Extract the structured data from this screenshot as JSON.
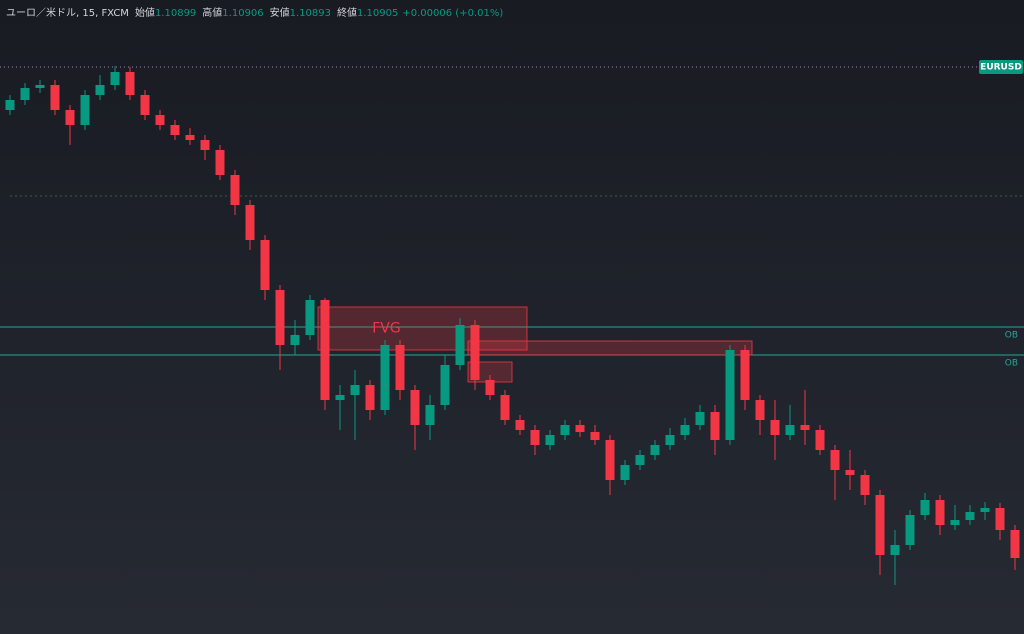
{
  "chart_data": {
    "type": "candlestick",
    "header": {
      "symbol": "ユーロ／米ドル, 15, FXCM",
      "fields": [
        {
          "label": "始値",
          "value": 1.10899
        },
        {
          "label": "高値",
          "value": 1.10906
        },
        {
          "label": "安値",
          "value": 1.10893
        },
        {
          "label": "終値",
          "value": 1.10905
        }
      ],
      "change": "+0.00006 (+0.01%)"
    },
    "ticker": "EURUSD",
    "up_color": "#089981",
    "down_color": "#f23645",
    "ylim": [
      1.1035,
      1.10984
    ],
    "ohlc": [
      [
        1.10874,
        1.10889,
        1.10869,
        1.10884
      ],
      [
        1.10884,
        1.10901,
        1.10879,
        1.10896
      ],
      [
        1.10896,
        1.10904,
        1.10891,
        1.10899
      ],
      [
        1.10899,
        1.10904,
        1.10869,
        1.10874
      ],
      [
        1.10874,
        1.10879,
        1.10839,
        1.10859
      ],
      [
        1.10859,
        1.10894,
        1.10854,
        1.10889
      ],
      [
        1.10889,
        1.10909,
        1.10884,
        1.10899
      ],
      [
        1.10899,
        1.10918,
        1.10894,
        1.10912
      ],
      [
        1.10912,
        1.10917,
        1.10884,
        1.10889
      ],
      [
        1.10889,
        1.10894,
        1.10864,
        1.10869
      ],
      [
        1.10869,
        1.10874,
        1.10854,
        1.10859
      ],
      [
        1.10859,
        1.10864,
        1.10844,
        1.10849
      ],
      [
        1.10849,
        1.10856,
        1.10839,
        1.10844
      ],
      [
        1.10844,
        1.10849,
        1.10824,
        1.10834
      ],
      [
        1.10834,
        1.10839,
        1.10804,
        1.10809
      ],
      [
        1.10809,
        1.10814,
        1.10769,
        1.10779
      ],
      [
        1.10779,
        1.10784,
        1.10734,
        1.10744
      ],
      [
        1.10744,
        1.10749,
        1.10684,
        1.10694
      ],
      [
        1.10694,
        1.10699,
        1.10614,
        1.10639
      ],
      [
        1.10639,
        1.10664,
        1.10629,
        1.10649
      ],
      [
        1.10649,
        1.10689,
        1.10644,
        1.10684
      ],
      [
        1.10684,
        1.10686,
        1.10574,
        1.10584
      ],
      [
        1.10584,
        1.10599,
        1.10554,
        1.10589
      ],
      [
        1.10589,
        1.10614,
        1.10544,
        1.10599
      ],
      [
        1.10599,
        1.10604,
        1.10564,
        1.10574
      ],
      [
        1.10574,
        1.10644,
        1.10569,
        1.10639
      ],
      [
        1.10639,
        1.10644,
        1.10584,
        1.10594
      ],
      [
        1.10594,
        1.10599,
        1.10534,
        1.10559
      ],
      [
        1.10559,
        1.10589,
        1.10544,
        1.10579
      ],
      [
        1.10579,
        1.10629,
        1.10574,
        1.10619
      ],
      [
        1.10619,
        1.10666,
        1.10614,
        1.10659
      ],
      [
        1.10659,
        1.10664,
        1.10594,
        1.10604
      ],
      [
        1.10604,
        1.10609,
        1.10584,
        1.10589
      ],
      [
        1.10589,
        1.10594,
        1.10559,
        1.10564
      ],
      [
        1.10564,
        1.10569,
        1.10549,
        1.10554
      ],
      [
        1.10554,
        1.10559,
        1.10529,
        1.10539
      ],
      [
        1.10539,
        1.10554,
        1.10534,
        1.10549
      ],
      [
        1.10549,
        1.10564,
        1.10544,
        1.10559
      ],
      [
        1.10559,
        1.10564,
        1.10547,
        1.10552
      ],
      [
        1.10552,
        1.10559,
        1.10539,
        1.10544
      ],
      [
        1.10544,
        1.10549,
        1.10489,
        1.10504
      ],
      [
        1.10504,
        1.10524,
        1.10499,
        1.10519
      ],
      [
        1.10519,
        1.10534,
        1.10514,
        1.10529
      ],
      [
        1.10529,
        1.10544,
        1.10524,
        1.10539
      ],
      [
        1.10539,
        1.10556,
        1.10534,
        1.10549
      ],
      [
        1.10549,
        1.10566,
        1.10544,
        1.10559
      ],
      [
        1.10559,
        1.10579,
        1.10554,
        1.10572
      ],
      [
        1.10572,
        1.10579,
        1.10529,
        1.10544
      ],
      [
        1.10544,
        1.10639,
        1.10539,
        1.10634
      ],
      [
        1.10634,
        1.10639,
        1.10574,
        1.10584
      ],
      [
        1.10584,
        1.10589,
        1.10549,
        1.10564
      ],
      [
        1.10564,
        1.10584,
        1.10524,
        1.10549
      ],
      [
        1.10549,
        1.10579,
        1.10544,
        1.10559
      ],
      [
        1.10559,
        1.10594,
        1.10539,
        1.10554
      ],
      [
        1.10554,
        1.10559,
        1.10529,
        1.10534
      ],
      [
        1.10534,
        1.10539,
        1.10484,
        1.10514
      ],
      [
        1.10514,
        1.10534,
        1.10494,
        1.10509
      ],
      [
        1.10509,
        1.10514,
        1.10479,
        1.10489
      ],
      [
        1.10489,
        1.10494,
        1.10409,
        1.10429
      ],
      [
        1.10429,
        1.10454,
        1.10399,
        1.10439
      ],
      [
        1.10439,
        1.10474,
        1.10434,
        1.10469
      ],
      [
        1.10469,
        1.10491,
        1.10464,
        1.10484
      ],
      [
        1.10484,
        1.10489,
        1.10449,
        1.10459
      ],
      [
        1.10459,
        1.10479,
        1.10454,
        1.10464
      ],
      [
        1.10464,
        1.10479,
        1.10459,
        1.10472
      ],
      [
        1.10472,
        1.10482,
        1.10464,
        1.10476
      ],
      [
        1.10476,
        1.10481,
        1.10444,
        1.10454
      ],
      [
        1.10454,
        1.10459,
        1.10414,
        1.10426
      ]
    ],
    "price_line": 1.10917,
    "dashed_line": 1.10788,
    "levels": [
      {
        "value": 1.10657,
        "label": "OB"
      },
      {
        "value": 1.10629,
        "label": "OB"
      }
    ],
    "level_color": "#26a69a",
    "zones": [
      {
        "top": 1.10677,
        "bottom": 1.10634,
        "from": 21,
        "to": 34,
        "label": "FVG"
      },
      {
        "top": 1.10643,
        "bottom": 1.10629,
        "from": 31,
        "to": 49
      },
      {
        "top": 1.10622,
        "bottom": 1.10602,
        "from": 31,
        "to": 33
      }
    ],
    "zone_color": "#f23645"
  }
}
